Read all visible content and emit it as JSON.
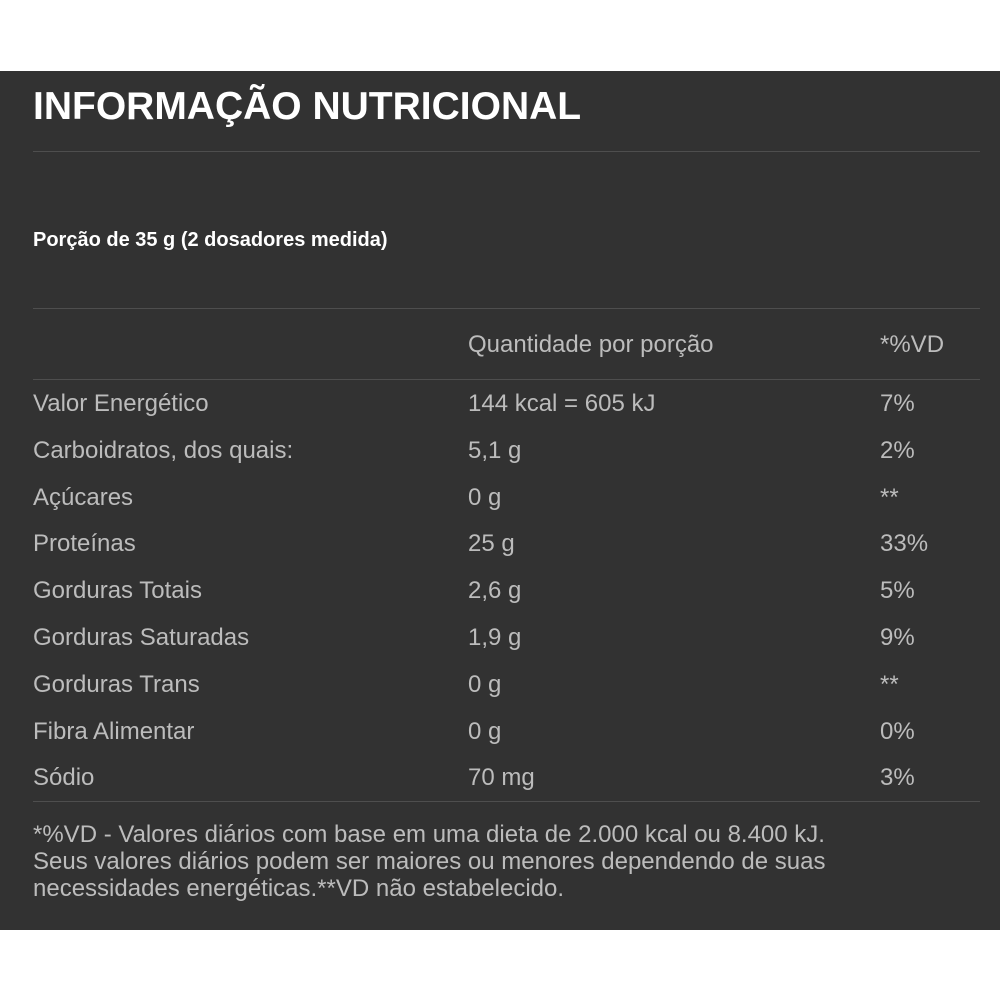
{
  "title": "INFORMAÇÃO NUTRICIONAL",
  "serving": "Porção de 35 g (2 dosadores medida)",
  "table": {
    "headers": {
      "amount": "Quantidade por porção",
      "dv": "*%VD"
    },
    "rows": [
      {
        "nutrient": "Valor Energético",
        "amount": "144 kcal = 605 kJ",
        "dv": "7%"
      },
      {
        "nutrient": "Carboidratos, dos quais:",
        "amount": "5,1 g",
        "dv": "2%"
      },
      {
        "nutrient": "Açúcares",
        "amount": "0 g",
        "dv": "**"
      },
      {
        "nutrient": "Proteínas",
        "amount": "25 g",
        "dv": "33%"
      },
      {
        "nutrient": "Gorduras Totais",
        "amount": "2,6 g",
        "dv": "5%"
      },
      {
        "nutrient": "Gorduras Saturadas",
        "amount": "1,9 g",
        "dv": "9%"
      },
      {
        "nutrient": "Gorduras Trans",
        "amount": "0 g",
        "dv": "**"
      },
      {
        "nutrient": "Fibra Alimentar",
        "amount": "0 g",
        "dv": "0%"
      },
      {
        "nutrient": "Sódio",
        "amount": "70 mg",
        "dv": "3%"
      }
    ]
  },
  "footnote": {
    "line1": "*%VD - Valores diários com base em uma dieta de 2.000 kcal ou 8.400 kJ.",
    "line2": "Seus valores diários podem ser maiores ou menores dependendo de suas",
    "line3": "necessidades energéticas.**VD não estabelecido."
  }
}
